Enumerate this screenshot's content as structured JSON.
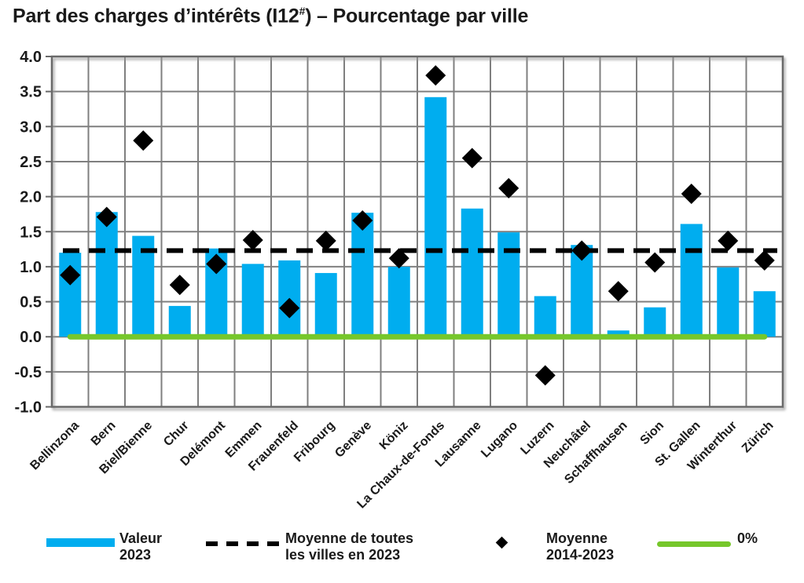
{
  "title": {
    "prefix": "Part des charges d’intérêts (I12",
    "superscript": "#",
    "suffix": ") – Pourcentage par ville"
  },
  "colors": {
    "bar": "#00ADEF",
    "diamond": "#000000",
    "mean_line": "#000000",
    "zero_line": "#76C72B",
    "grid": "#7f7f7f",
    "border": "#696969",
    "text": "#1a1a1a"
  },
  "chart_data": {
    "type": "bar",
    "title": "Part des charges d’intérêts (I12#) – Pourcentage par ville",
    "xlabel": "",
    "ylabel": "",
    "ylim": [
      -1.0,
      4.0
    ],
    "grid": true,
    "y_tick_labels": [
      "4.0",
      "3.5",
      "3.0",
      "2.5",
      "2.0",
      "1.5",
      "1.0",
      "0.5",
      "0.0",
      "-0.5",
      "-1.0"
    ],
    "categories": [
      "Bellinzona",
      "Bern",
      "Biel/Bienne",
      "Chur",
      "Delémont",
      "Emmen",
      "Frauenfeld",
      "Fribourg",
      "Genève",
      "Köniz",
      "La Chaux-de-Fonds",
      "Lausanne",
      "Lugano",
      "Luzern",
      "Neuchâtel",
      "Schaffhausen",
      "Sion",
      "St. Gallen",
      "Winterthur",
      "Zürich"
    ],
    "series": [
      {
        "name": "Valeur 2023",
        "type": "bar",
        "color": "#00ADEF",
        "values": [
          1.2,
          1.78,
          1.44,
          0.44,
          1.26,
          1.04,
          1.09,
          0.91,
          1.77,
          1.0,
          3.42,
          1.83,
          1.49,
          0.58,
          1.31,
          0.09,
          0.42,
          1.61,
          0.99,
          0.65
        ]
      },
      {
        "name": "Moyenne 2014-2023",
        "type": "scatter-diamond",
        "color": "#000000",
        "values": [
          0.88,
          1.71,
          2.8,
          0.74,
          1.04,
          1.38,
          0.41,
          1.37,
          1.66,
          1.12,
          3.73,
          2.55,
          2.12,
          -0.55,
          1.23,
          0.65,
          1.06,
          2.04,
          1.37,
          1.09
        ]
      },
      {
        "name": "Moyenne de toutes les villes en 2023",
        "type": "dashed-hline",
        "color": "#000000",
        "value": 1.23
      },
      {
        "name": "0%",
        "type": "hline",
        "color": "#76C72B",
        "value": 0.0
      }
    ],
    "legend_position": "bottom"
  },
  "legend": {
    "items": [
      {
        "swatch": "bar",
        "label": "Valeur\n2023"
      },
      {
        "swatch": "dashed-line",
        "label": "Moyenne de toutes\nles villes en 2023"
      },
      {
        "swatch": "diamond",
        "label": "Moyenne\n2014-2023"
      },
      {
        "swatch": "zero-line",
        "label": "0%"
      }
    ]
  }
}
